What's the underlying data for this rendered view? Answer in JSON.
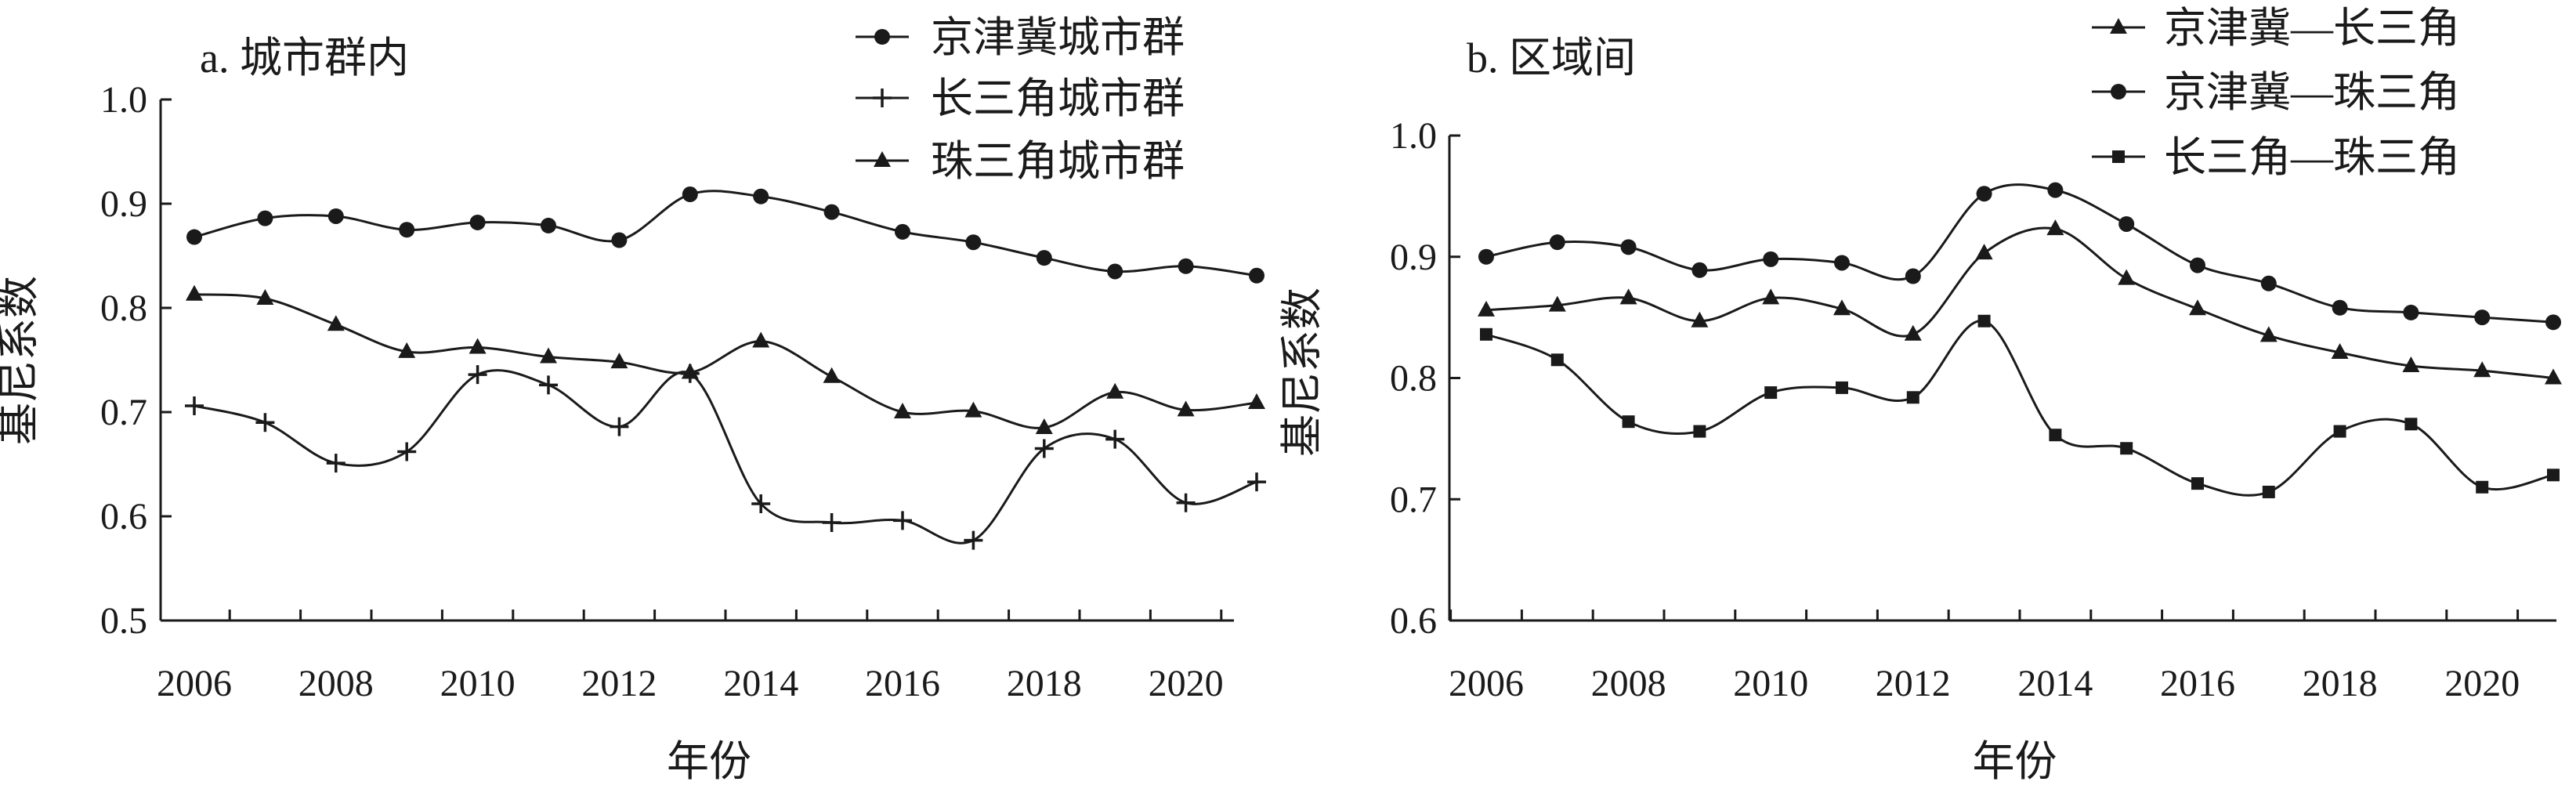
{
  "colors": {
    "ink": "#1a1a1a",
    "background": "#ffffff"
  },
  "chart_data": [
    {
      "type": "line",
      "title": "a. 城市群内",
      "xlabel": "年份",
      "ylabel": "基尼系数",
      "x": [
        2006,
        2007,
        2008,
        2009,
        2010,
        2011,
        2012,
        2013,
        2014,
        2015,
        2016,
        2017,
        2018,
        2019,
        2020,
        2021
      ],
      "x_ticks": [
        2006,
        2008,
        2010,
        2012,
        2014,
        2016,
        2018,
        2020
      ],
      "ylim": [
        0.5,
        1.0
      ],
      "y_ticks": [
        "0.5",
        "0.6",
        "0.7",
        "0.8",
        "0.9",
        "1.0"
      ],
      "grid": false,
      "legend_position": "top-right",
      "series": [
        {
          "name": "京津冀城市群",
          "marker": "circle",
          "values": [
            0.868,
            0.886,
            0.888,
            0.875,
            0.882,
            0.879,
            0.865,
            0.909,
            0.907,
            0.892,
            0.873,
            0.863,
            0.848,
            0.835,
            0.84,
            0.831
          ]
        },
        {
          "name": "长三角城市群",
          "marker": "plus",
          "values": [
            0.706,
            0.69,
            0.651,
            0.662,
            0.736,
            0.726,
            0.686,
            0.737,
            0.612,
            0.594,
            0.596,
            0.577,
            0.665,
            0.674,
            0.613,
            0.633
          ]
        },
        {
          "name": "珠三角城市群",
          "marker": "triangle",
          "values": [
            0.813,
            0.809,
            0.784,
            0.758,
            0.762,
            0.753,
            0.748,
            0.738,
            0.768,
            0.734,
            0.7,
            0.701,
            0.685,
            0.719,
            0.702,
            0.709
          ]
        }
      ]
    },
    {
      "type": "line",
      "title": "b. 区域间",
      "xlabel": "年份",
      "ylabel": "基尼系数",
      "x": [
        2006,
        2007,
        2008,
        2009,
        2010,
        2011,
        2012,
        2013,
        2014,
        2015,
        2016,
        2017,
        2018,
        2019,
        2020,
        2021
      ],
      "x_ticks": [
        2006,
        2008,
        2010,
        2012,
        2014,
        2016,
        2018,
        2020
      ],
      "ylim": [
        0.6,
        1.0
      ],
      "y_ticks": [
        "0.6",
        "0.7",
        "0.8",
        "0.9",
        "1.0"
      ],
      "grid": false,
      "legend_position": "top-right",
      "series": [
        {
          "name": "京津冀—长三角",
          "marker": "triangle",
          "values": [
            0.856,
            0.86,
            0.866,
            0.847,
            0.866,
            0.857,
            0.836,
            0.903,
            0.923,
            0.882,
            0.857,
            0.835,
            0.821,
            0.81,
            0.806,
            0.8
          ]
        },
        {
          "name": "京津冀—珠三角",
          "marker": "circle",
          "values": [
            0.9,
            0.912,
            0.908,
            0.889,
            0.898,
            0.895,
            0.884,
            0.952,
            0.955,
            0.927,
            0.893,
            0.878,
            0.858,
            0.854,
            0.85,
            0.846
          ]
        },
        {
          "name": "长三角—珠三角",
          "marker": "square",
          "values": [
            0.836,
            0.815,
            0.764,
            0.756,
            0.788,
            0.792,
            0.784,
            0.847,
            0.753,
            0.742,
            0.713,
            0.706,
            0.756,
            0.762,
            0.71,
            0.72
          ]
        }
      ]
    }
  ]
}
